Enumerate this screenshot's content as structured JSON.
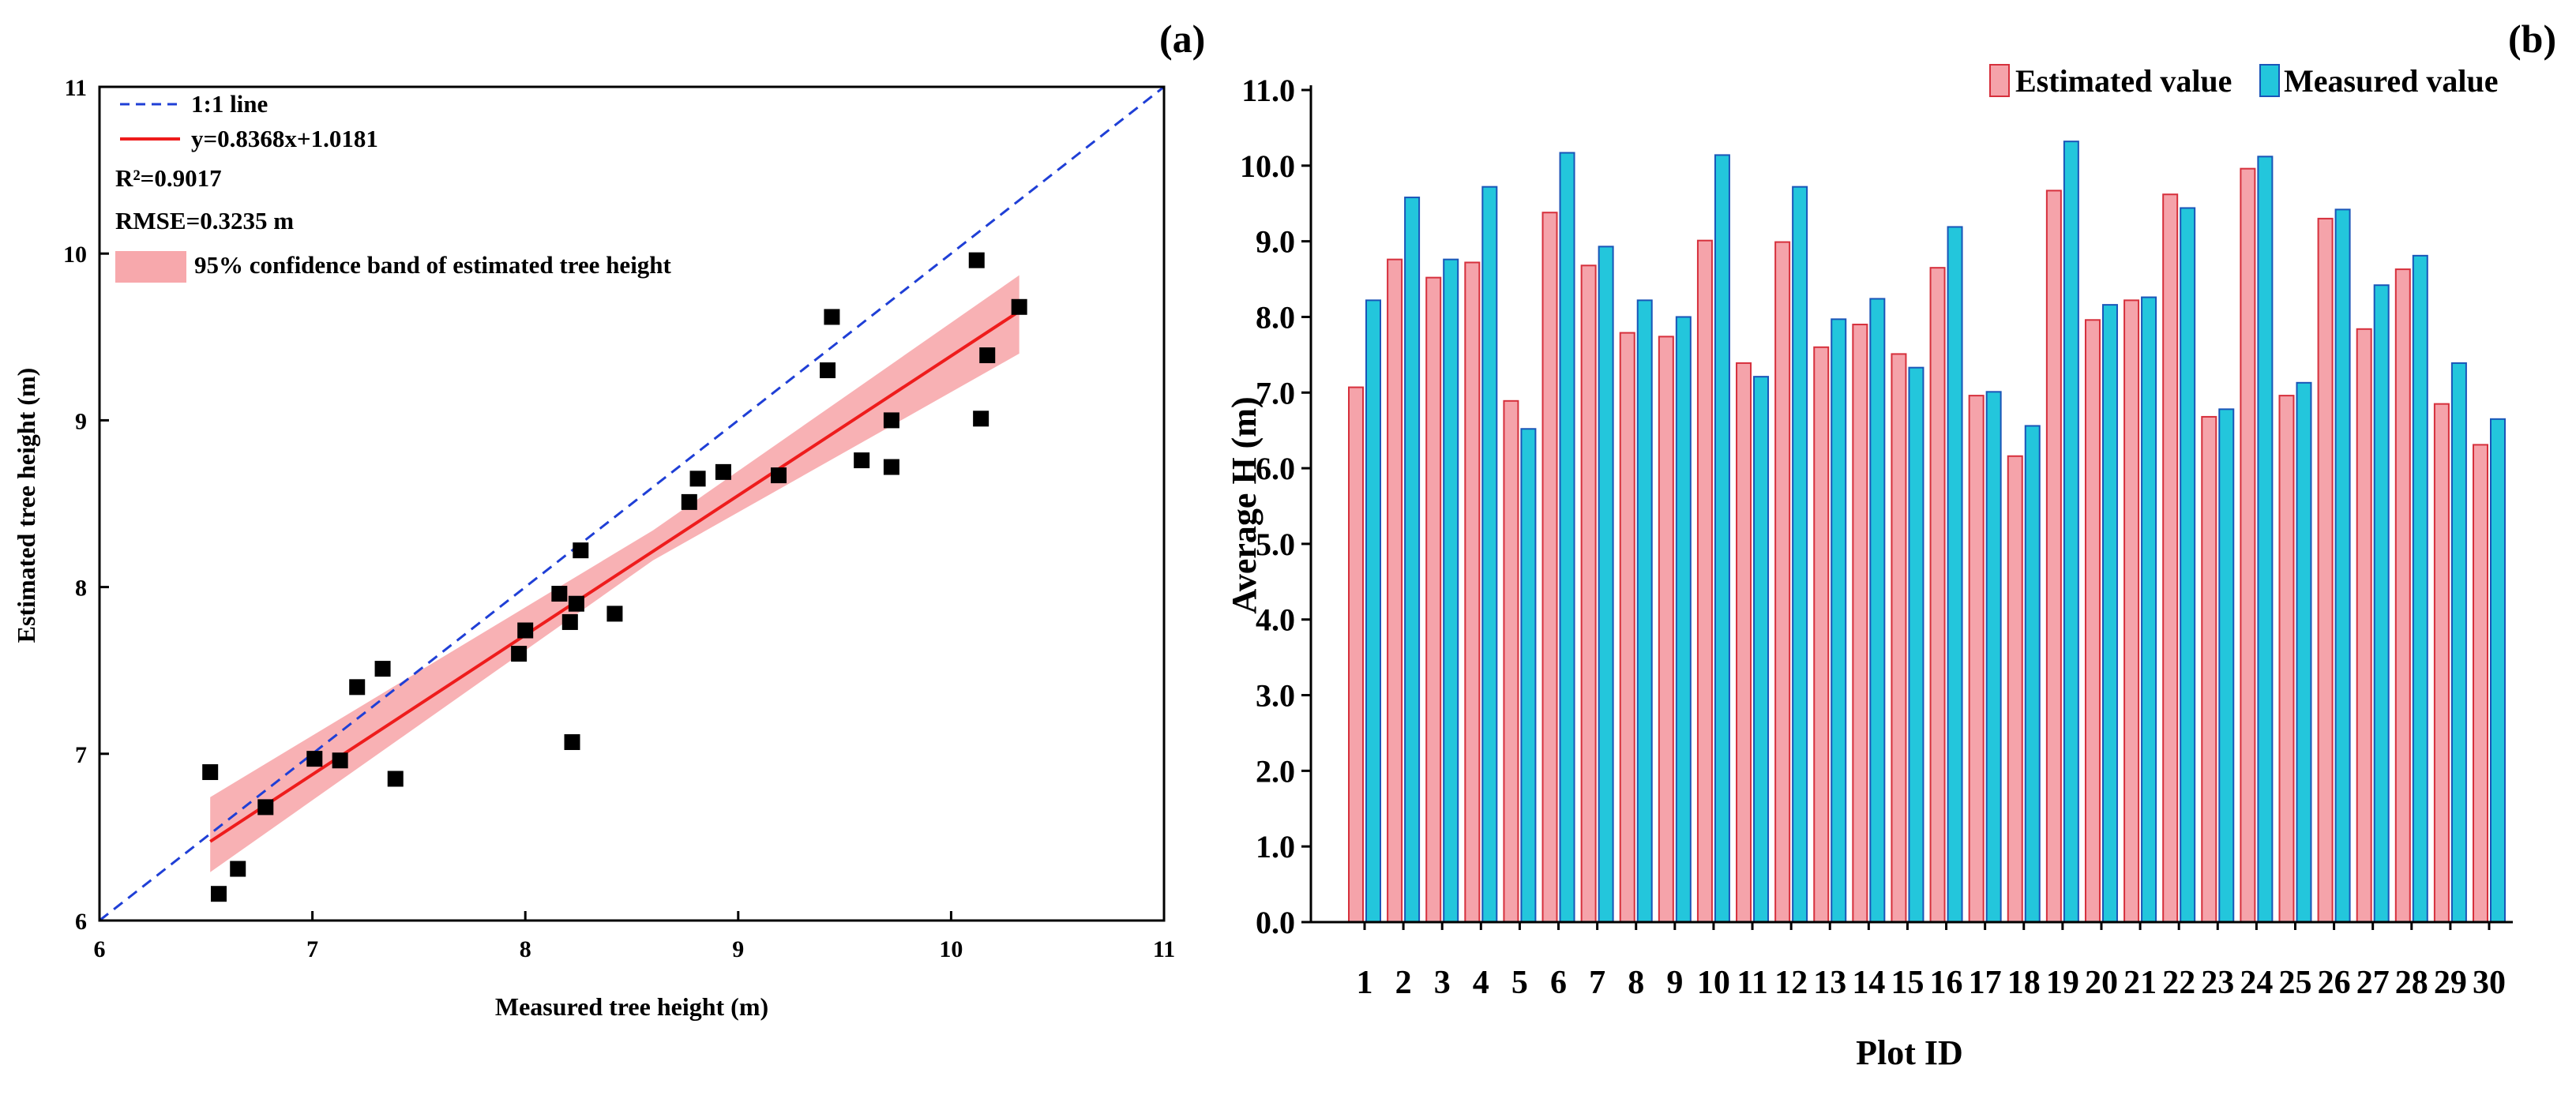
{
  "chart_data": [
    {
      "type": "scatter",
      "panel_label": "(a)",
      "title": "",
      "xlabel": "Measured tree height (m)",
      "ylabel": "Estimated tree height (m)",
      "xlim": [
        6,
        11
      ],
      "ylim": [
        6,
        11
      ],
      "xticks": [
        "6",
        "7",
        "8",
        "9",
        "10",
        "11"
      ],
      "yticks": [
        "6",
        "7",
        "8",
        "9",
        "10",
        "11"
      ],
      "legend_position": "top-left",
      "legend": {
        "identity_line": "1:1 line",
        "fit_line": "y=0.8368x+1.0181",
        "r2": "R²=0.9017",
        "rmse": "RMSE=0.3235 m",
        "band": "95% confidence band of estimated tree height"
      },
      "fit": {
        "slope": 0.8368,
        "intercept": 1.0181,
        "x_range": [
          6.52,
          10.32
        ]
      },
      "confidence_band": {
        "x": [
          6.52,
          8.6,
          10.32
        ],
        "lower": [
          6.29,
          8.16,
          9.4
        ],
        "upper": [
          6.74,
          8.34,
          9.87
        ]
      },
      "colors": {
        "points": "#000000",
        "identity_line": "#1f3fd6",
        "fit_line": "#ee1c1c",
        "band": "#f7a8ac"
      },
      "points": [
        {
          "x": 6.52,
          "y": 6.89
        },
        {
          "x": 6.56,
          "y": 6.16
        },
        {
          "x": 6.65,
          "y": 6.31
        },
        {
          "x": 6.78,
          "y": 6.68
        },
        {
          "x": 7.01,
          "y": 6.97
        },
        {
          "x": 7.13,
          "y": 6.96
        },
        {
          "x": 7.21,
          "y": 7.4
        },
        {
          "x": 7.33,
          "y": 7.51
        },
        {
          "x": 7.39,
          "y": 6.85
        },
        {
          "x": 7.97,
          "y": 7.6
        },
        {
          "x": 8.0,
          "y": 7.74
        },
        {
          "x": 8.16,
          "y": 7.96
        },
        {
          "x": 8.21,
          "y": 7.79
        },
        {
          "x": 8.22,
          "y": 7.07
        },
        {
          "x": 8.24,
          "y": 7.9
        },
        {
          "x": 8.26,
          "y": 8.22
        },
        {
          "x": 8.42,
          "y": 7.84
        },
        {
          "x": 8.77,
          "y": 8.51
        },
        {
          "x": 8.81,
          "y": 8.65
        },
        {
          "x": 8.93,
          "y": 8.69
        },
        {
          "x": 9.19,
          "y": 8.67
        },
        {
          "x": 9.42,
          "y": 9.3
        },
        {
          "x": 9.44,
          "y": 9.62
        },
        {
          "x": 9.58,
          "y": 8.76
        },
        {
          "x": 9.72,
          "y": 8.72
        },
        {
          "x": 9.72,
          "y": 9.0
        },
        {
          "x": 10.12,
          "y": 9.96
        },
        {
          "x": 10.14,
          "y": 9.01
        },
        {
          "x": 10.17,
          "y": 9.39
        },
        {
          "x": 10.32,
          "y": 9.68
        }
      ]
    },
    {
      "type": "bar",
      "panel_label": "(b)",
      "title": "",
      "xlabel": "Plot ID",
      "ylabel": "Average H (m)",
      "ylim": [
        0,
        11
      ],
      "yticks": [
        "0.0",
        "1.0",
        "2.0",
        "3.0",
        "4.0",
        "5.0",
        "6.0",
        "7.0",
        "8.0",
        "9.0",
        "10.0",
        "11.0"
      ],
      "legend_position": "top-right",
      "categories": [
        "1",
        "2",
        "3",
        "4",
        "5",
        "6",
        "7",
        "8",
        "9",
        "10",
        "11",
        "12",
        "13",
        "14",
        "15",
        "16",
        "17",
        "18",
        "19",
        "20",
        "21",
        "22",
        "23",
        "24",
        "25",
        "26",
        "27",
        "28",
        "29",
        "30"
      ],
      "series": [
        {
          "name": "Estimated value",
          "color": "#f5a3aa",
          "edge": "#d6303c",
          "values": [
            7.07,
            8.76,
            8.52,
            8.72,
            6.89,
            9.38,
            8.68,
            7.79,
            7.74,
            9.01,
            7.39,
            8.99,
            7.6,
            7.9,
            7.51,
            8.65,
            6.96,
            6.16,
            9.67,
            7.96,
            8.22,
            9.62,
            6.68,
            9.96,
            6.96,
            9.3,
            7.84,
            8.63,
            6.85,
            6.31
          ]
        },
        {
          "name": "Measured value",
          "color": "#23c6dc",
          "edge": "#1a55b8",
          "values": [
            8.22,
            9.58,
            8.76,
            9.72,
            6.52,
            10.17,
            8.93,
            8.22,
            8.0,
            10.14,
            7.21,
            9.72,
            7.97,
            8.24,
            7.33,
            9.19,
            7.01,
            6.56,
            10.32,
            8.16,
            8.26,
            9.44,
            6.78,
            10.12,
            7.13,
            9.42,
            8.42,
            8.81,
            7.39,
            6.65
          ]
        }
      ]
    }
  ]
}
